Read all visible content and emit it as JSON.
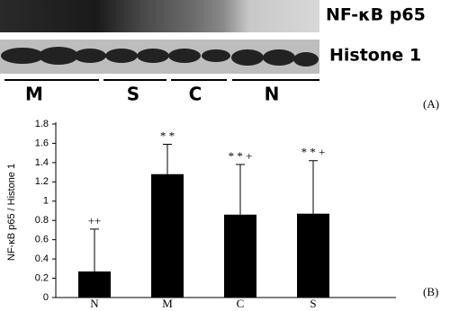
{
  "blot": {
    "bands": [
      "NF-κB p65",
      "Histone 1"
    ],
    "groups": [
      "M",
      "S",
      "C",
      "N"
    ],
    "panel_label": "(A)"
  },
  "chart_data": {
    "type": "bar",
    "panel_label": "(B)",
    "y_label": "NF-κB p65 / Histone 1",
    "categories": [
      "N",
      "M",
      "C",
      "S"
    ],
    "values": [
      0.27,
      1.28,
      0.86,
      0.87
    ],
    "errors": [
      0.44,
      0.31,
      0.52,
      0.55
    ],
    "annotations": [
      "++",
      "* *",
      "* * +",
      "* * +"
    ],
    "color": "#000000",
    "ylim": [
      0,
      1.8
    ],
    "yticks": [
      0,
      0.2,
      0.4,
      0.6,
      0.8,
      1,
      1.2,
      1.4,
      1.6,
      1.8
    ]
  }
}
